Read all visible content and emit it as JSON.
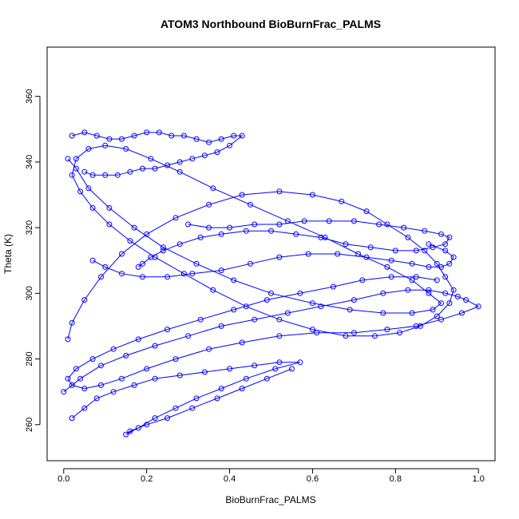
{
  "chart_data": {
    "type": "line",
    "title": "ATOM3 Northbound BioBurnFrac_PALMS",
    "xlabel": "BioBurnFrac_PALMS",
    "ylabel": "Theta (K)",
    "xlim": [
      -0.04,
      1.04
    ],
    "ylim": [
      249,
      375
    ],
    "x_ticks": [
      0.0,
      0.2,
      0.4,
      0.6,
      0.8,
      1.0
    ],
    "x_tick_labels": [
      "0.0",
      "0.2",
      "0.4",
      "0.6",
      "0.8",
      "1.0"
    ],
    "y_ticks": [
      260,
      280,
      300,
      320,
      340,
      360
    ],
    "y_tick_labels": [
      "260",
      "280",
      "300",
      "320",
      "340",
      "360"
    ],
    "grid": false,
    "marker": "open-circle",
    "color": "#0000ff",
    "series": [
      {
        "x": [
          0.01,
          0.02,
          0.05,
          0.09,
          0.14,
          0.2,
          0.27,
          0.35,
          0.43,
          0.52,
          0.6,
          0.67,
          0.73,
          0.78,
          0.83,
          0.87,
          0.9,
          0.92,
          0.94,
          0.93,
          0.9,
          0.86,
          0.81,
          0.75,
          0.68,
          0.6,
          0.52,
          0.44,
          0.36,
          0.29,
          0.22,
          0.16,
          0.11,
          0.07,
          0.04,
          0.02,
          0.03,
          0.06,
          0.1,
          0.15,
          0.21,
          0.28,
          0.36,
          0.45,
          0.54,
          0.63,
          0.71,
          0.78,
          0.84,
          0.88,
          0.91,
          0.89,
          0.84,
          0.77,
          0.69,
          0.6,
          0.5,
          0.41,
          0.32,
          0.24,
          0.17,
          0.11,
          0.06,
          0.03,
          0.01
        ],
        "y": [
          286,
          291,
          298,
          305,
          312,
          318,
          323,
          327,
          330,
          331,
          330,
          328,
          325,
          321,
          317,
          313,
          309,
          305,
          301,
          297,
          293,
          290,
          288,
          287,
          287,
          289,
          292,
          296,
          301,
          306,
          311,
          316,
          321,
          326,
          331,
          336,
          341,
          344,
          345,
          344,
          341,
          337,
          332,
          327,
          322,
          317,
          312,
          308,
          304,
          300,
          297,
          295,
          294,
          294,
          295,
          297,
          300,
          304,
          309,
          314,
          320,
          326,
          332,
          338,
          341
        ]
      },
      {
        "x": [
          0.0,
          0.04,
          0.09,
          0.15,
          0.22,
          0.3,
          0.38,
          0.46,
          0.54,
          0.62,
          0.7,
          0.77,
          0.83,
          0.88,
          0.92,
          0.95,
          0.97,
          1.0,
          0.96,
          0.91,
          0.85,
          0.78,
          0.7,
          0.61,
          0.52,
          0.43,
          0.35,
          0.27,
          0.2,
          0.14,
          0.09,
          0.05,
          0.02,
          0.01,
          0.03,
          0.07,
          0.12,
          0.18,
          0.25,
          0.33,
          0.41,
          0.49,
          0.57,
          0.65,
          0.72,
          0.79,
          0.85,
          0.9
        ],
        "y": [
          270,
          274,
          278,
          281,
          284,
          287,
          290,
          292,
          294,
          296,
          298,
          300,
          301,
          301,
          300,
          299,
          298,
          296,
          294,
          292,
          290,
          289,
          288,
          288,
          287,
          285,
          283,
          280,
          277,
          274,
          272,
          271,
          272,
          274,
          277,
          280,
          283,
          286,
          289,
          292,
          295,
          298,
          300,
          302,
          304,
          305,
          305,
          304
        ]
      },
      {
        "x": [
          0.02,
          0.05,
          0.08,
          0.12,
          0.17,
          0.22,
          0.28,
          0.34,
          0.4,
          0.46,
          0.52,
          0.57,
          0.51,
          0.44,
          0.38,
          0.32,
          0.27,
          0.22,
          0.18,
          0.15,
          0.16,
          0.2,
          0.25,
          0.31,
          0.37,
          0.43,
          0.49,
          0.55
        ],
        "y": [
          262,
          265,
          268,
          270,
          272,
          274,
          275,
          276,
          277,
          278,
          279,
          279,
          277,
          274,
          271,
          268,
          265,
          262,
          259,
          257,
          258,
          260,
          262,
          265,
          268,
          271,
          274,
          277
        ]
      },
      {
        "x": [
          0.02,
          0.05,
          0.08,
          0.11,
          0.14,
          0.17,
          0.2,
          0.23,
          0.26,
          0.29,
          0.32,
          0.35,
          0.38,
          0.41,
          0.43,
          0.4,
          0.37,
          0.34,
          0.31,
          0.28,
          0.25,
          0.22,
          0.19,
          0.16,
          0.13,
          0.1,
          0.07,
          0.05
        ],
        "y": [
          348,
          349,
          348,
          347,
          347,
          348,
          349,
          349,
          348,
          348,
          347,
          346,
          347,
          348,
          348,
          345,
          343,
          342,
          341,
          340,
          339,
          338,
          338,
          337,
          336,
          336,
          336,
          337
        ]
      },
      {
        "x": [
          0.3,
          0.35,
          0.4,
          0.46,
          0.52,
          0.58,
          0.64,
          0.7,
          0.76,
          0.82,
          0.87,
          0.91,
          0.93,
          0.92,
          0.89,
          0.85,
          0.8,
          0.74,
          0.68,
          0.62,
          0.56,
          0.5,
          0.44,
          0.38,
          0.33,
          0.28,
          0.24,
          0.21,
          0.19,
          0.18
        ],
        "y": [
          321,
          320,
          320,
          321,
          321,
          322,
          322,
          322,
          321,
          320,
          319,
          318,
          317,
          315,
          314,
          313,
          313,
          314,
          315,
          317,
          318,
          319,
          319,
          318,
          317,
          315,
          313,
          311,
          309,
          308
        ]
      },
      {
        "x": [
          0.07,
          0.1,
          0.14,
          0.19,
          0.25,
          0.31,
          0.38,
          0.45,
          0.52,
          0.59,
          0.66,
          0.73,
          0.79,
          0.84,
          0.88,
          0.91,
          0.93,
          0.94,
          0.92,
          0.88
        ],
        "y": [
          310,
          308,
          306,
          305,
          305,
          306,
          307,
          309,
          311,
          312,
          312,
          311,
          310,
          309,
          308,
          308,
          309,
          311,
          313,
          315
        ]
      }
    ]
  }
}
